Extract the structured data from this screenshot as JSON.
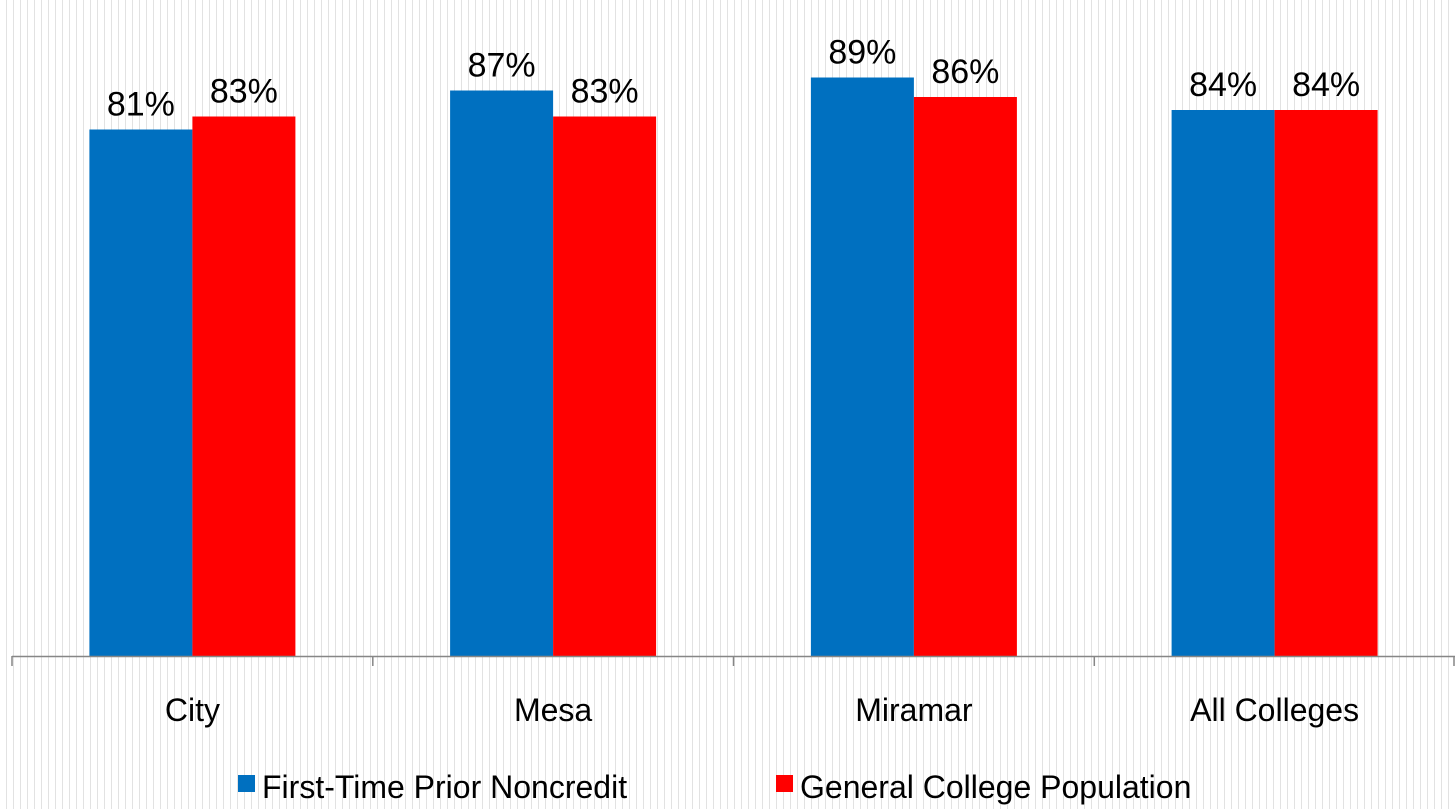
{
  "chart_data": {
    "type": "bar",
    "categories": [
      "City",
      "Mesa",
      "Miramar",
      "All Colleges"
    ],
    "series": [
      {
        "name": "First-Time Prior Noncredit",
        "values": [
          81,
          87,
          89,
          84
        ],
        "labels": [
          "81%",
          "87%",
          "89%",
          "84%"
        ],
        "color": "#0070C0"
      },
      {
        "name": "General College Population",
        "values": [
          83,
          83,
          86,
          84
        ],
        "labels": [
          "83%",
          "83%",
          "86%",
          "84%"
        ],
        "color": "#FF0000"
      }
    ],
    "ylim": [
      0,
      100
    ],
    "unit": "%",
    "legend": "bottom",
    "grid": false
  }
}
